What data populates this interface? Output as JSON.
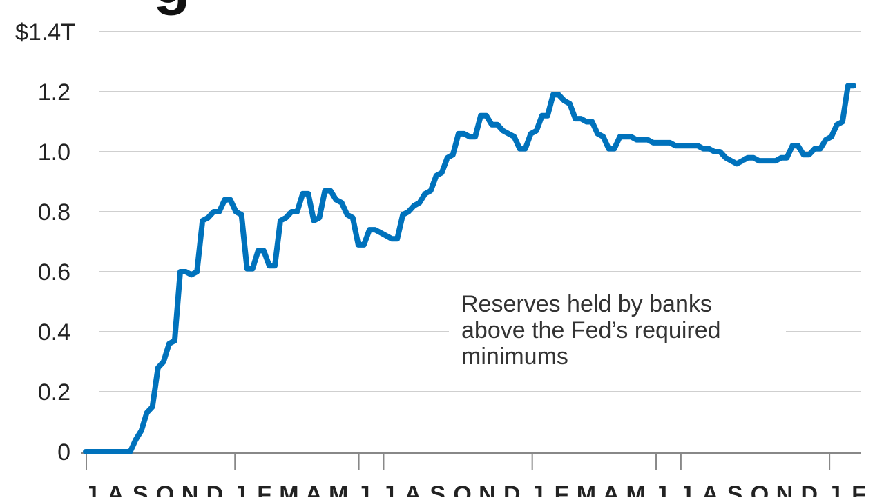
{
  "chart_data": {
    "type": "line",
    "title_fragment": "g",
    "ylabel": "",
    "xlabel": "",
    "ylim": [
      0,
      1.4
    ],
    "yticks": [
      {
        "value": 0,
        "label": "0"
      },
      {
        "value": 0.2,
        "label": "0.2"
      },
      {
        "value": 0.4,
        "label": "0.4"
      },
      {
        "value": 0.6,
        "label": "0.6"
      },
      {
        "value": 0.8,
        "label": "0.8"
      },
      {
        "value": 1.0,
        "label": "1.0"
      },
      {
        "value": 1.2,
        "label": "1.2"
      },
      {
        "value": 1.4,
        "label": "$1.4T"
      }
    ],
    "x_month_labels": [
      "J",
      "A",
      "S",
      "O",
      "N",
      "D",
      "J",
      "F",
      "M",
      "A",
      "M",
      "J",
      "J",
      "A",
      "S",
      "O",
      "N",
      "D",
      "J",
      "F",
      "M",
      "A",
      "M",
      "J",
      "J",
      "A",
      "S",
      "O",
      "N",
      "D",
      "J",
      "F"
    ],
    "annotation": [
      "Reserves held by banks",
      "above the Fed’s required",
      "minimums"
    ],
    "grid": true,
    "color": "#0072bc",
    "series": [
      {
        "values": [
          0,
          0,
          0,
          0,
          0,
          0,
          0,
          0,
          0,
          0.04,
          0.07,
          0.13,
          0.15,
          0.28,
          0.3,
          0.36,
          0.37,
          0.6,
          0.6,
          0.59,
          0.6,
          0.77,
          0.78,
          0.8,
          0.8,
          0.84,
          0.84,
          0.8,
          0.79,
          0.61,
          0.61,
          0.67,
          0.67,
          0.62,
          0.62,
          0.77,
          0.78,
          0.8,
          0.8,
          0.86,
          0.86,
          0.77,
          0.78,
          0.87,
          0.87,
          0.84,
          0.83,
          0.79,
          0.78,
          0.69,
          0.69,
          0.74,
          0.74,
          0.73,
          0.72,
          0.71,
          0.71,
          0.79,
          0.8,
          0.82,
          0.83,
          0.86,
          0.87,
          0.92,
          0.93,
          0.98,
          0.99,
          1.06,
          1.06,
          1.05,
          1.05,
          1.12,
          1.12,
          1.09,
          1.09,
          1.07,
          1.06,
          1.05,
          1.01,
          1.01,
          1.06,
          1.07,
          1.12,
          1.12,
          1.19,
          1.19,
          1.17,
          1.16,
          1.11,
          1.11,
          1.1,
          1.1,
          1.06,
          1.05,
          1.01,
          1.01,
          1.05,
          1.05,
          1.05,
          1.04,
          1.04,
          1.04,
          1.03,
          1.03,
          1.03,
          1.03,
          1.02,
          1.02,
          1.02,
          1.02,
          1.02,
          1.01,
          1.01,
          1.0,
          1.0,
          0.98,
          0.97,
          0.96,
          0.97,
          0.98,
          0.98,
          0.97,
          0.97,
          0.97,
          0.97,
          0.98,
          0.98,
          1.02,
          1.02,
          0.99,
          0.99,
          1.01,
          1.01,
          1.04,
          1.05,
          1.09,
          1.1,
          1.22,
          1.22
        ]
      }
    ]
  }
}
